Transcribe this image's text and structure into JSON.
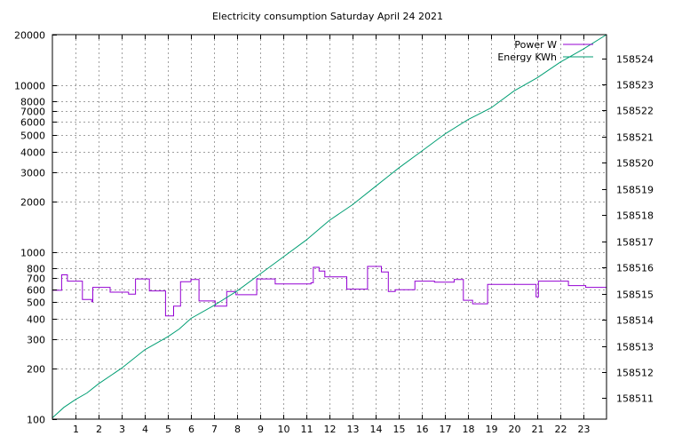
{
  "chart_data": {
    "type": "line",
    "title": "Electricity consumption Saturday April 24 2021",
    "xlabel": "",
    "ylabel": "",
    "grid": true,
    "legend_position": "top-right",
    "x_axis": {
      "range": [
        0,
        24
      ],
      "ticks": [
        1,
        2,
        3,
        4,
        5,
        6,
        7,
        8,
        9,
        10,
        11,
        12,
        13,
        14,
        15,
        16,
        17,
        18,
        19,
        20,
        21,
        22,
        23
      ],
      "tick_labels": [
        "1",
        "2",
        "3",
        "4",
        "5",
        "6",
        "7",
        "8",
        "9",
        "10",
        "11",
        "12",
        "13",
        "14",
        "15",
        "16",
        "17",
        "18",
        "19",
        "20",
        "21",
        "22",
        "23"
      ]
    },
    "y_axis_left": {
      "scale": "log",
      "range": [
        100,
        20000
      ],
      "ticks": [
        100,
        200,
        300,
        400,
        500,
        600,
        700,
        800,
        1000,
        2000,
        3000,
        4000,
        5000,
        6000,
        7000,
        8000,
        10000,
        20000
      ],
      "tick_labels": [
        "100",
        "200",
        "300",
        "400",
        "500",
        "600",
        "700",
        "800",
        "1000",
        "2000",
        "3000",
        "4000",
        "5000",
        "6000",
        "7000",
        "8000",
        "10000",
        "20000"
      ]
    },
    "y_axis_right": {
      "scale": "linear",
      "range": [
        158510.2,
        158524.9
      ],
      "ticks": [
        158511,
        158512,
        158513,
        158514,
        158515,
        158516,
        158517,
        158518,
        158519,
        158520,
        158521,
        158522,
        158523,
        158524
      ],
      "tick_labels": [
        "158511",
        "158512",
        "158513",
        "158514",
        "158515",
        "158516",
        "158517",
        "158518",
        "158519",
        "158520",
        "158521",
        "158522",
        "158523",
        "158524"
      ]
    },
    "series": [
      {
        "name": "Power W",
        "axis": "left",
        "color": "#9400d3",
        "step": true,
        "points": [
          [
            0,
            590
          ],
          [
            0.4,
            730
          ],
          [
            0.65,
            670
          ],
          [
            1.3,
            520
          ],
          [
            1.7,
            505
          ],
          [
            1.75,
            615
          ],
          [
            2.5,
            575
          ],
          [
            3.3,
            560
          ],
          [
            3.6,
            690
          ],
          [
            4.2,
            585
          ],
          [
            4.9,
            415
          ],
          [
            5.25,
            475
          ],
          [
            5.55,
            665
          ],
          [
            6.0,
            685
          ],
          [
            6.35,
            510
          ],
          [
            7.05,
            475
          ],
          [
            7.55,
            580
          ],
          [
            7.95,
            555
          ],
          [
            8.85,
            690
          ],
          [
            9.65,
            645
          ],
          [
            11.2,
            655
          ],
          [
            11.3,
            810
          ],
          [
            11.55,
            770
          ],
          [
            11.8,
            710
          ],
          [
            12.75,
            600
          ],
          [
            13.65,
            820
          ],
          [
            14.25,
            760
          ],
          [
            14.55,
            580
          ],
          [
            14.85,
            595
          ],
          [
            15.7,
            670
          ],
          [
            16.55,
            660
          ],
          [
            17.4,
            685
          ],
          [
            17.8,
            515
          ],
          [
            18.2,
            490
          ],
          [
            18.85,
            640
          ],
          [
            20.95,
            540
          ],
          [
            21.05,
            670
          ],
          [
            22.35,
            630
          ],
          [
            23.1,
            615
          ],
          [
            24.0,
            615
          ]
        ]
      },
      {
        "name": "Energy KWh",
        "axis": "right",
        "color": "#009e73",
        "step": false,
        "points": [
          [
            0,
            158510.25
          ],
          [
            0.5,
            158510.65
          ],
          [
            1.0,
            158510.95
          ],
          [
            1.5,
            158511.2
          ],
          [
            2.0,
            158511.55
          ],
          [
            3.0,
            158512.15
          ],
          [
            4.0,
            158512.85
          ],
          [
            5.0,
            158513.35
          ],
          [
            5.5,
            158513.65
          ],
          [
            6.0,
            158514.05
          ],
          [
            7.0,
            158514.55
          ],
          [
            8.0,
            158515.1
          ],
          [
            9.0,
            158515.75
          ],
          [
            10.0,
            158516.4
          ],
          [
            11.0,
            158517.05
          ],
          [
            12.0,
            158517.8
          ],
          [
            13.0,
            158518.4
          ],
          [
            14.0,
            158519.1
          ],
          [
            14.5,
            158519.45
          ],
          [
            15.0,
            158519.8
          ],
          [
            16.0,
            158520.45
          ],
          [
            17.0,
            158521.1
          ],
          [
            18.0,
            158521.65
          ],
          [
            19.0,
            158522.1
          ],
          [
            20.0,
            158522.75
          ],
          [
            21.0,
            158523.25
          ],
          [
            22.0,
            158523.85
          ],
          [
            23.0,
            158524.35
          ],
          [
            24.0,
            158524.9
          ]
        ]
      }
    ]
  }
}
